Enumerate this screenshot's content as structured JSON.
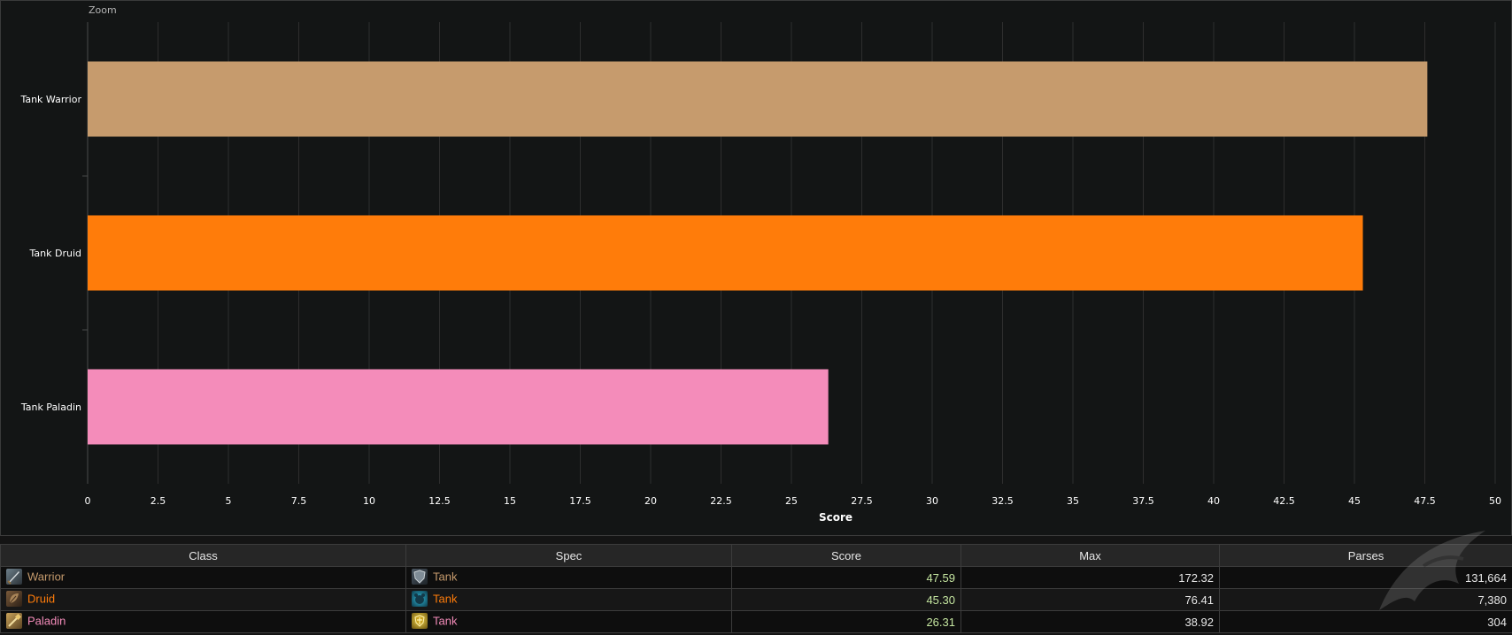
{
  "zoom_label": "Zoom",
  "chart_data": {
    "type": "bar",
    "orientation": "horizontal",
    "categories": [
      "Tank Warrior",
      "Tank Druid",
      "Tank Paladin"
    ],
    "values": [
      47.59,
      45.3,
      26.31
    ],
    "colors": [
      "#c69b6d",
      "#ff7c0a",
      "#f48cba"
    ],
    "xlabel": "Score",
    "xlim": [
      0,
      50
    ],
    "xticks": [
      "0",
      "2.5",
      "5",
      "7.5",
      "10",
      "12.5",
      "15",
      "17.5",
      "20",
      "22.5",
      "25",
      "27.5",
      "30",
      "32.5",
      "35",
      "37.5",
      "40",
      "42.5",
      "45",
      "47.5",
      "50"
    ],
    "grid": true
  },
  "table": {
    "headers": [
      "Class",
      "Spec",
      "Score",
      "Max",
      "Parses"
    ],
    "rows": [
      {
        "class": "Warrior",
        "class_color": "#c69b6d",
        "class_icon": "warrior-class-icon",
        "spec": "Tank",
        "spec_icon": "shield-spec-icon",
        "score": "47.59",
        "max": "172.32",
        "parses": "131,664"
      },
      {
        "class": "Druid",
        "class_color": "#ff7c0a",
        "class_icon": "druid-class-icon",
        "spec": "Tank",
        "spec_icon": "bear-spec-icon",
        "score": "45.30",
        "max": "76.41",
        "parses": "7,380"
      },
      {
        "class": "Paladin",
        "class_color": "#f48cba",
        "class_icon": "paladin-class-icon",
        "spec": "Tank",
        "spec_icon": "holy-shield-spec-icon",
        "score": "26.31",
        "max": "38.92",
        "parses": "304"
      }
    ]
  }
}
